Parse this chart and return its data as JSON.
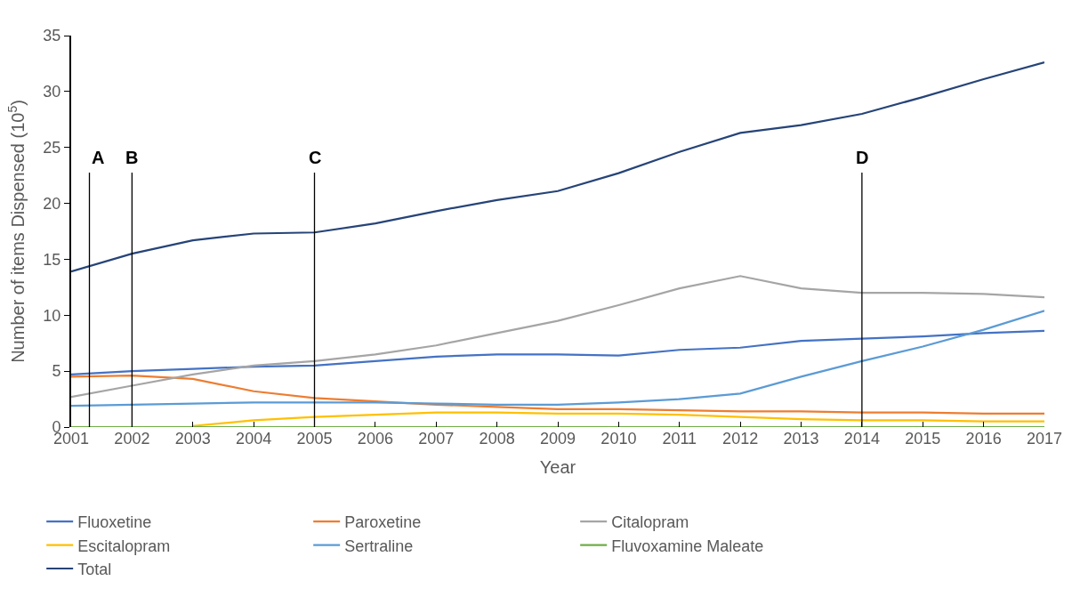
{
  "chart_data": {
    "type": "line",
    "xlabel": "Year",
    "ylabel": "Number of items Dispensed (10$^{5}$)",
    "x": [
      2001,
      2002,
      2003,
      2004,
      2005,
      2006,
      2007,
      2008,
      2009,
      2010,
      2011,
      2012,
      2013,
      2014,
      2015,
      2016,
      2017
    ],
    "xlim": [
      2001,
      2017
    ],
    "xticks": [
      2001,
      2002,
      2003,
      2004,
      2005,
      2006,
      2007,
      2008,
      2009,
      2010,
      2011,
      2012,
      2013,
      2014,
      2015,
      2016,
      2017
    ],
    "ylim": [
      0,
      35
    ],
    "yticks": [
      0,
      5,
      10,
      15,
      20,
      25,
      30,
      35
    ],
    "legend": "bottom",
    "marker": "none",
    "line_style": "solid",
    "series": [
      {
        "name": "Fluoxetine",
        "color": "#4472c4",
        "values": [
          4.7,
          5.0,
          5.2,
          5.4,
          5.5,
          5.9,
          6.3,
          6.5,
          6.5,
          6.4,
          6.9,
          7.1,
          7.7,
          7.9,
          8.1,
          8.4,
          8.6
        ]
      },
      {
        "name": "Paroxetine",
        "color": "#ed7d31",
        "values": [
          4.5,
          4.6,
          4.3,
          3.2,
          2.6,
          2.3,
          2.0,
          1.8,
          1.6,
          1.6,
          1.5,
          1.4,
          1.4,
          1.3,
          1.3,
          1.2,
          1.2
        ]
      },
      {
        "name": "Citalopram",
        "color": "#a5a5a5",
        "values": [
          2.7,
          3.7,
          4.7,
          5.5,
          5.9,
          6.5,
          7.3,
          8.4,
          9.5,
          10.9,
          12.4,
          13.5,
          12.4,
          12.0,
          12.0,
          11.9,
          11.6
        ]
      },
      {
        "name": "Escitalopram",
        "color": "#ffc000",
        "values": [
          null,
          null,
          0.1,
          0.6,
          0.9,
          1.1,
          1.3,
          1.3,
          1.2,
          1.2,
          1.1,
          0.9,
          0.7,
          0.6,
          0.6,
          0.5,
          0.5
        ]
      },
      {
        "name": "Sertraline",
        "color": "#5b9bd5",
        "values": [
          1.9,
          2.0,
          2.1,
          2.2,
          2.2,
          2.2,
          2.1,
          2.0,
          2.0,
          2.2,
          2.5,
          3.0,
          4.5,
          5.9,
          7.2,
          8.7,
          10.4
        ]
      },
      {
        "name": "Fluvoxamine Maleate",
        "color": "#70ad47",
        "values": [
          0,
          0,
          0,
          0,
          0,
          0,
          0,
          0,
          0,
          0,
          0,
          0,
          0,
          0,
          0,
          0,
          0
        ]
      },
      {
        "name": "Total",
        "color": "#264478",
        "values": [
          13.9,
          15.5,
          16.7,
          17.3,
          17.4,
          18.2,
          19.3,
          20.3,
          21.1,
          22.7,
          24.6,
          26.3,
          27.0,
          28.0,
          29.5,
          31.1,
          32.6
        ]
      }
    ],
    "ref_lines": [
      {
        "axis": "x",
        "value": 2001.3,
        "label": "A",
        "color": "#000000"
      },
      {
        "axis": "x",
        "value": 2002,
        "label": "B",
        "color": "#000000"
      },
      {
        "axis": "x",
        "value": 2005,
        "label": "C",
        "color": "#000000"
      },
      {
        "axis": "x",
        "value": 2014,
        "label": "D",
        "color": "#000000"
      }
    ]
  }
}
